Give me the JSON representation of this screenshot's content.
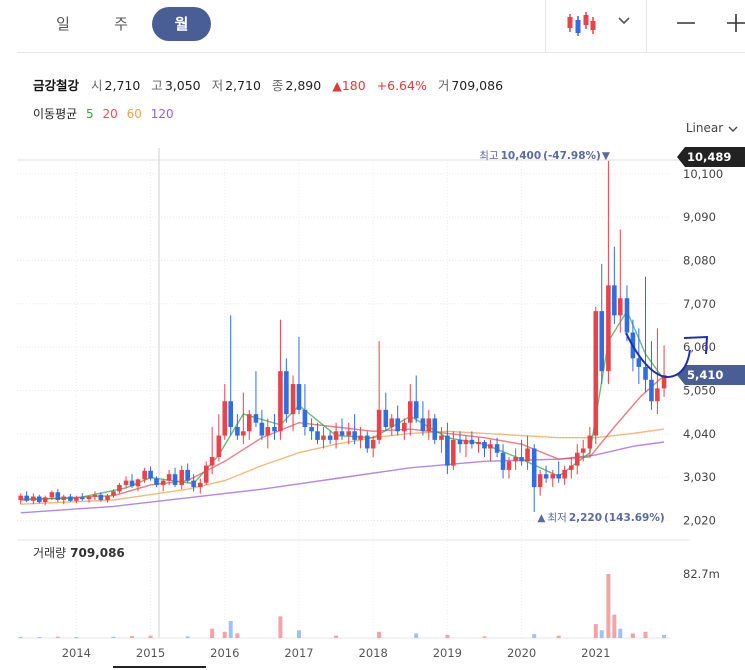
{
  "toolbar": {
    "tabs": [
      {
        "label": "일",
        "active": false
      },
      {
        "label": "주",
        "active": false
      },
      {
        "label": "월",
        "active": true
      }
    ],
    "chart_type_icon": "candlestick-icon",
    "dropdown_icon": "chevron-down-icon",
    "zoom_out_icon": "minus-icon",
    "zoom_in_icon": "plus-icon"
  },
  "header": {
    "stock_name": "금강철강",
    "open_label": "시",
    "open": "2,710",
    "high_label": "고",
    "high": "3,050",
    "low_label": "저",
    "low": "2,710",
    "close_label": "종",
    "close": "2,890",
    "change_arrow": "▲",
    "change": "180",
    "change_pct": "+6.64%",
    "volume_label": "거",
    "volume": "709,086"
  },
  "moving_average": {
    "label": "이동평균",
    "periods": [
      {
        "label": "5",
        "color": "#36a84a"
      },
      {
        "label": "20",
        "color": "#e8505b"
      },
      {
        "label": "60",
        "color": "#f0a24e"
      },
      {
        "label": "120",
        "color": "#9b5de5"
      }
    ]
  },
  "scale_mode": "Linear",
  "scale_icon": "chevron-down-icon",
  "colors": {
    "up": "#e8434a",
    "down": "#2f6de0",
    "accent": "#4a5e96",
    "volume_up": "#f3a3a6",
    "volume_down": "#9fc2f3"
  },
  "chart_data": {
    "type": "candlestick",
    "interval": "monthly",
    "x_ticks": [
      "2014",
      "2015",
      "2016",
      "2017",
      "2018",
      "2019",
      "2020",
      "2021"
    ],
    "y_ticks": [
      "10,100",
      "9,090",
      "8,080",
      "7,070",
      "6,060",
      "5,050",
      "4,040",
      "3,030",
      "2,020"
    ],
    "y_tick_values": [
      10100,
      9090,
      8080,
      7070,
      6060,
      5050,
      4040,
      3030,
      2020
    ],
    "ylim": [
      1800,
      10700
    ],
    "xlim": [
      2013.2,
      2022.0
    ],
    "current_price_label": "5,410",
    "current_price": 5410,
    "max_price_label": "10,489",
    "max_price": 10489,
    "high_annotation": {
      "label": "최고",
      "value": "10,400",
      "pct": "(-47.98%)",
      "arrow": "▼",
      "price": 10400,
      "date": 2021.15
    },
    "low_annotation": {
      "label": "최저",
      "value": "2,220",
      "pct": "(143.69%)",
      "arrow": "▲",
      "price": 2220,
      "date": 2020.2
    },
    "volume_label": "거래량",
    "volume_value": "709,086",
    "volume_axis_tick": "82.7m",
    "volume_axis_value": 82.7,
    "volume_unit": "m",
    "candles": [
      [
        2013.25,
        2500,
        2650,
        2400,
        2600
      ],
      [
        2013.33,
        2600,
        2700,
        2450,
        2480
      ],
      [
        2013.42,
        2480,
        2650,
        2400,
        2580
      ],
      [
        2013.5,
        2580,
        2620,
        2420,
        2450
      ],
      [
        2013.58,
        2450,
        2600,
        2380,
        2560
      ],
      [
        2013.67,
        2560,
        2720,
        2500,
        2680
      ],
      [
        2013.75,
        2680,
        2760,
        2450,
        2500
      ],
      [
        2013.83,
        2500,
        2620,
        2400,
        2580
      ],
      [
        2013.92,
        2580,
        2640,
        2460,
        2480
      ],
      [
        2014.0,
        2480,
        2600,
        2420,
        2560
      ],
      [
        2014.08,
        2560,
        2660,
        2480,
        2520
      ],
      [
        2014.17,
        2520,
        2600,
        2440,
        2580
      ],
      [
        2014.25,
        2580,
        2700,
        2500,
        2620
      ],
      [
        2014.33,
        2620,
        2680,
        2460,
        2500
      ],
      [
        2014.42,
        2500,
        2640,
        2440,
        2600
      ],
      [
        2014.5,
        2600,
        2750,
        2550,
        2700
      ],
      [
        2014.58,
        2700,
        2900,
        2650,
        2850
      ],
      [
        2014.67,
        2850,
        3050,
        2780,
        2950
      ],
      [
        2014.75,
        2950,
        3100,
        2780,
        2820
      ],
      [
        2014.83,
        2820,
        3000,
        2700,
        2980
      ],
      [
        2014.92,
        2980,
        3250,
        2900,
        3180
      ],
      [
        2015.0,
        3180,
        3280,
        2950,
        3000
      ],
      [
        2015.08,
        3000,
        3050,
        2800,
        2850
      ],
      [
        2015.17,
        2850,
        3000,
        2700,
        2950
      ],
      [
        2015.25,
        2950,
        3200,
        2850,
        3100
      ],
      [
        2015.33,
        3100,
        3250,
        2800,
        2850
      ],
      [
        2015.42,
        2850,
        3300,
        2750,
        3200
      ],
      [
        2015.5,
        3200,
        3350,
        2900,
        2950
      ],
      [
        2015.58,
        2950,
        3100,
        2700,
        2800
      ],
      [
        2015.67,
        2800,
        3000,
        2650,
        2900
      ],
      [
        2015.75,
        2900,
        3400,
        2850,
        3300
      ],
      [
        2015.83,
        3300,
        4200,
        3100,
        3500
      ],
      [
        2015.92,
        3500,
        4500,
        3400,
        4000
      ],
      [
        2016.0,
        4000,
        5200,
        3900,
        4800
      ],
      [
        2016.08,
        4800,
        6800,
        4000,
        4200
      ],
      [
        2016.17,
        4200,
        4500,
        3900,
        4000
      ],
      [
        2016.25,
        4000,
        5000,
        3800,
        4100
      ],
      [
        2016.33,
        4100,
        4600,
        3900,
        4500
      ],
      [
        2016.42,
        4500,
        5500,
        4200,
        4300
      ],
      [
        2016.5,
        4300,
        4600,
        3900,
        4000
      ],
      [
        2016.58,
        4000,
        4400,
        3700,
        4200
      ],
      [
        2016.67,
        4200,
        4500,
        3900,
        4100
      ],
      [
        2016.75,
        4100,
        6700,
        3900,
        5500
      ],
      [
        2016.83,
        5500,
        5800,
        4300,
        4500
      ],
      [
        2016.92,
        4500,
        5400,
        4100,
        5200
      ],
      [
        2017.0,
        5200,
        6300,
        4500,
        4600
      ],
      [
        2017.08,
        4600,
        5200,
        4000,
        4200
      ],
      [
        2017.17,
        4200,
        4400,
        3900,
        4100
      ],
      [
        2017.25,
        4100,
        4300,
        3800,
        3900
      ],
      [
        2017.33,
        3900,
        4200,
        3700,
        4000
      ],
      [
        2017.42,
        4000,
        4100,
        3800,
        3900
      ],
      [
        2017.5,
        3900,
        4300,
        3700,
        4100
      ],
      [
        2017.58,
        4100,
        4400,
        3900,
        4000
      ],
      [
        2017.67,
        4000,
        4300,
        3800,
        4100
      ],
      [
        2017.75,
        4100,
        4500,
        3800,
        3900
      ],
      [
        2017.83,
        3900,
        4200,
        3700,
        4000
      ],
      [
        2017.92,
        4000,
        4100,
        3600,
        3700
      ],
      [
        2018.0,
        3700,
        4000,
        3500,
        3900
      ],
      [
        2018.08,
        3900,
        6200,
        3800,
        4600
      ],
      [
        2018.17,
        4600,
        5000,
        4100,
        4200
      ],
      [
        2018.25,
        4200,
        4500,
        4000,
        4400
      ],
      [
        2018.33,
        4400,
        4700,
        4000,
        4100
      ],
      [
        2018.42,
        4100,
        4400,
        3900,
        4300
      ],
      [
        2018.5,
        4300,
        5200,
        4000,
        4800
      ],
      [
        2018.58,
        4800,
        5400,
        4300,
        4400
      ],
      [
        2018.67,
        4400,
        4800,
        4000,
        4100
      ],
      [
        2018.75,
        4100,
        4600,
        3900,
        4400
      ],
      [
        2018.83,
        4400,
        4500,
        3800,
        3900
      ],
      [
        2018.92,
        3900,
        4200,
        3600,
        4000
      ],
      [
        2019.0,
        4000,
        4300,
        3100,
        3300
      ],
      [
        2019.08,
        3300,
        4100,
        3200,
        3900
      ],
      [
        2019.17,
        3900,
        4100,
        3600,
        3800
      ],
      [
        2019.25,
        3800,
        4000,
        3500,
        3900
      ],
      [
        2019.33,
        3900,
        4100,
        3700,
        3800
      ],
      [
        2019.42,
        3800,
        3950,
        3600,
        3850
      ],
      [
        2019.5,
        3850,
        3900,
        3500,
        3700
      ],
      [
        2019.58,
        3700,
        3900,
        3400,
        3800
      ],
      [
        2019.67,
        3800,
        3950,
        3500,
        3600
      ],
      [
        2019.75,
        3600,
        3800,
        3000,
        3200
      ],
      [
        2019.83,
        3200,
        3500,
        3000,
        3400
      ],
      [
        2019.92,
        3400,
        3700,
        3200,
        3500
      ],
      [
        2020.0,
        3500,
        3900,
        3300,
        3400
      ],
      [
        2020.08,
        3400,
        4000,
        3200,
        3700
      ],
      [
        2020.17,
        3700,
        3800,
        2220,
        2800
      ],
      [
        2020.25,
        2800,
        3200,
        2600,
        3100
      ],
      [
        2020.33,
        3100,
        3300,
        2900,
        3000
      ],
      [
        2020.42,
        3000,
        3200,
        2800,
        3100
      ],
      [
        2020.5,
        3100,
        3400,
        2900,
        3000
      ],
      [
        2020.58,
        3000,
        3300,
        2850,
        3200
      ],
      [
        2020.67,
        3200,
        3500,
        3000,
        3300
      ],
      [
        2020.75,
        3300,
        3800,
        3100,
        3600
      ],
      [
        2020.83,
        3600,
        3900,
        3400,
        3700
      ],
      [
        2020.92,
        3700,
        4200,
        3500,
        4000
      ],
      [
        2021.0,
        4000,
        7000,
        3800,
        6900
      ],
      [
        2021.08,
        6900,
        8000,
        5200,
        5500
      ],
      [
        2021.17,
        5500,
        10400,
        5200,
        7500
      ],
      [
        2021.25,
        7500,
        8400,
        6600,
        6800
      ],
      [
        2021.33,
        6800,
        8800,
        6400,
        7200
      ],
      [
        2021.42,
        7200,
        7500,
        6200,
        6400
      ],
      [
        2021.5,
        6400,
        6700,
        5500,
        5800
      ],
      [
        2021.58,
        5800,
        6500,
        5200,
        5600
      ],
      [
        2021.67,
        5600,
        7700,
        5000,
        5300
      ],
      [
        2021.75,
        5300,
        6200,
        4600,
        4800
      ],
      [
        2021.83,
        4800,
        6500,
        4500,
        5100
      ],
      [
        2021.92,
        5100,
        6100,
        4900,
        5410
      ]
    ],
    "ma5": [
      [
        2013.25,
        2520
      ],
      [
        2014.0,
        2540
      ],
      [
        2014.67,
        2780
      ],
      [
        2015.0,
        3020
      ],
      [
        2015.58,
        2880
      ],
      [
        2015.92,
        3550
      ],
      [
        2016.25,
        4500
      ],
      [
        2016.75,
        4250
      ],
      [
        2017.0,
        4700
      ],
      [
        2017.5,
        4000
      ],
      [
        2018.0,
        3950
      ],
      [
        2018.5,
        4450
      ],
      [
        2019.0,
        3950
      ],
      [
        2019.5,
        3800
      ],
      [
        2020.0,
        3450
      ],
      [
        2020.5,
        3050
      ],
      [
        2020.92,
        3600
      ],
      [
        2021.17,
        6200
      ],
      [
        2021.42,
        6900
      ],
      [
        2021.67,
        5900
      ],
      [
        2021.92,
        5300
      ]
    ],
    "ma20": [
      [
        2013.25,
        2500
      ],
      [
        2014.5,
        2600
      ],
      [
        2015.0,
        2850
      ],
      [
        2015.5,
        2950
      ],
      [
        2016.0,
        3400
      ],
      [
        2016.5,
        3950
      ],
      [
        2017.0,
        4300
      ],
      [
        2017.5,
        4200
      ],
      [
        2018.0,
        4100
      ],
      [
        2018.5,
        4150
      ],
      [
        2019.0,
        4050
      ],
      [
        2019.5,
        3950
      ],
      [
        2020.0,
        3800
      ],
      [
        2020.5,
        3450
      ],
      [
        2020.92,
        3500
      ],
      [
        2021.25,
        4200
      ],
      [
        2021.6,
        4900
      ],
      [
        2021.92,
        5400
      ]
    ],
    "ma60": [
      [
        2013.25,
        2400
      ],
      [
        2014.5,
        2500
      ],
      [
        2015.5,
        2750
      ],
      [
        2016.0,
        2950
      ],
      [
        2016.5,
        3300
      ],
      [
        2017.0,
        3600
      ],
      [
        2017.5,
        3800
      ],
      [
        2018.0,
        3950
      ],
      [
        2018.5,
        4050
      ],
      [
        2019.0,
        4100
      ],
      [
        2019.5,
        4050
      ],
      [
        2020.0,
        4000
      ],
      [
        2020.5,
        3950
      ],
      [
        2021.0,
        3950
      ],
      [
        2021.5,
        4050
      ],
      [
        2021.92,
        4150
      ]
    ],
    "ma120": [
      [
        2013.25,
        2200
      ],
      [
        2014.5,
        2350
      ],
      [
        2015.5,
        2550
      ],
      [
        2016.5,
        2750
      ],
      [
        2017.5,
        3000
      ],
      [
        2018.5,
        3250
      ],
      [
        2019.5,
        3400
      ],
      [
        2020.5,
        3450
      ],
      [
        2021.0,
        3550
      ],
      [
        2021.5,
        3750
      ],
      [
        2021.92,
        3850
      ]
    ],
    "volumes": [
      [
        2013.25,
        1.5
      ],
      [
        2013.5,
        1.2
      ],
      [
        2013.75,
        1.8
      ],
      [
        2014.0,
        1.4
      ],
      [
        2014.5,
        1.6
      ],
      [
        2014.75,
        2.5
      ],
      [
        2015.0,
        3.0
      ],
      [
        2015.5,
        2.0
      ],
      [
        2015.83,
        12.0
      ],
      [
        2016.0,
        8.0
      ],
      [
        2016.08,
        22.0
      ],
      [
        2016.17,
        6.0
      ],
      [
        2016.75,
        28.0
      ],
      [
        2017.0,
        10.0
      ],
      [
        2017.5,
        3.0
      ],
      [
        2018.08,
        8.0
      ],
      [
        2018.58,
        6.0
      ],
      [
        2019.0,
        4.0
      ],
      [
        2019.5,
        2.0
      ],
      [
        2020.17,
        5.0
      ],
      [
        2020.5,
        3.0
      ],
      [
        2021.0,
        18.0
      ],
      [
        2021.08,
        10.0
      ],
      [
        2021.17,
        82.7
      ],
      [
        2021.25,
        30.0
      ],
      [
        2021.33,
        12.0
      ],
      [
        2021.5,
        6.0
      ],
      [
        2021.67,
        8.0
      ],
      [
        2021.92,
        4.0
      ]
    ]
  }
}
